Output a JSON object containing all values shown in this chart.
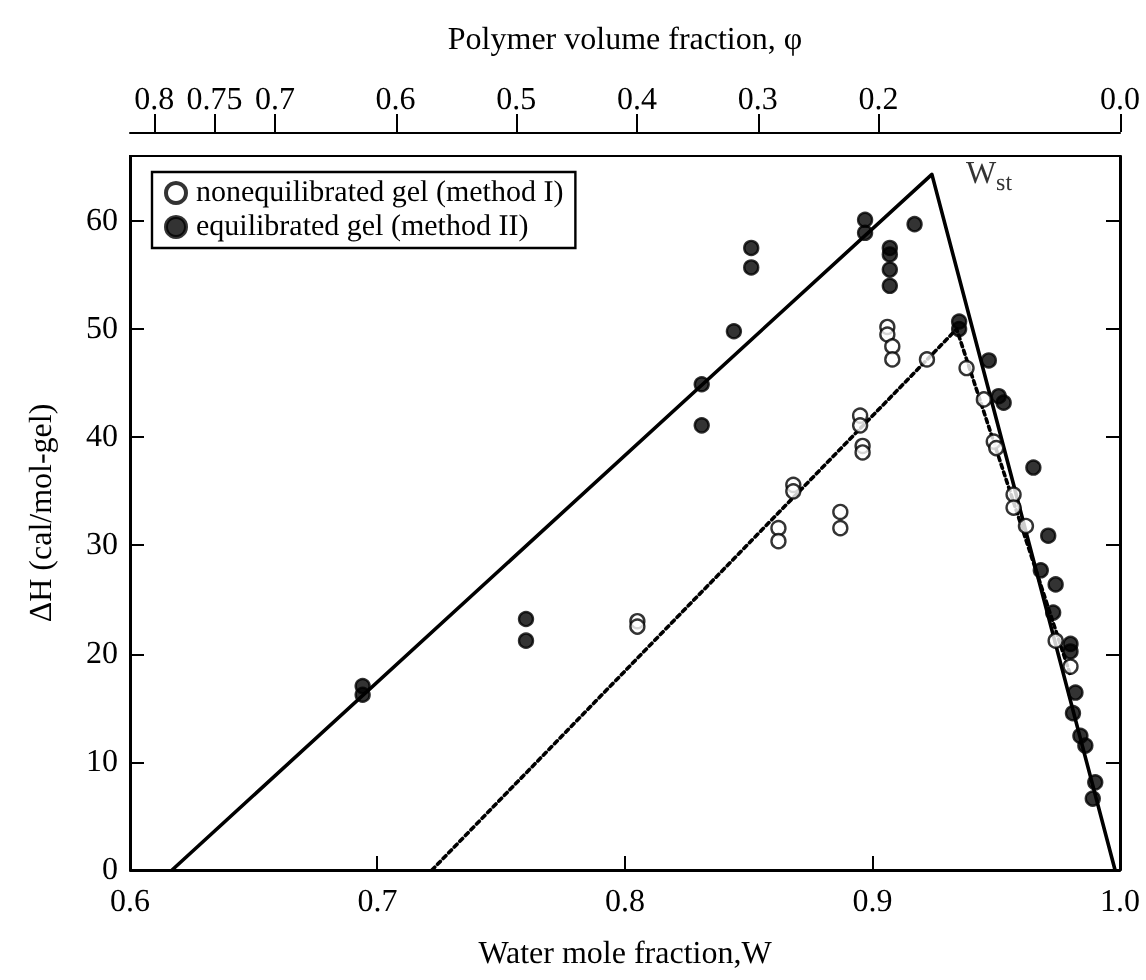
{
  "chart_data": {
    "type": "scatter",
    "xlabel": "Water mole fraction,W",
    "ylabel": "ΔH (cal/mol-gel)",
    "x2label": "Polymer volume fraction, φ",
    "xlim": [
      0.6,
      1.0
    ],
    "xticks": [
      0.6,
      0.7,
      0.8,
      0.9,
      {
        "value": 1.0,
        "label": "1.0"
      }
    ],
    "ylim": [
      0,
      66
    ],
    "yticks": [
      0,
      10,
      20,
      30,
      40,
      50,
      60
    ],
    "x2lim": [
      0.82,
      0.0
    ],
    "x2ticks": [
      0.8,
      0.75,
      0.7,
      0.6,
      0.5,
      0.4,
      0.3,
      0.2,
      {
        "value": 0,
        "label": "0.0"
      }
    ],
    "legend": "top left",
    "marker": "circle",
    "grid": false,
    "annotations": [
      {
        "text": "W$_{st}$",
        "x": 0.924,
        "y": 64.3
      }
    ],
    "series": [
      {
        "name": "nonequilibrated gel (method I)",
        "color": "#000000",
        "x": [
          0.805,
          0.805,
          0.862,
          0.862,
          0.868,
          0.868,
          0.887,
          0.887,
          0.895,
          0.895,
          0.896,
          0.896,
          0.906,
          0.906,
          0.908,
          0.908,
          0.922,
          0.938,
          0.945,
          0.949,
          0.95,
          0.957,
          0.957,
          0.962,
          0.974,
          0.98
        ],
        "values": [
          23,
          22.5,
          31.6,
          30.4,
          35.6,
          35,
          33.1,
          31.6,
          42,
          41.1,
          39.2,
          38.6,
          50.2,
          49.5,
          48.4,
          47.2,
          47.2,
          46.4,
          43.5,
          39.6,
          39,
          34.7,
          33.5,
          31.8,
          21.2,
          18.8
        ]
      },
      {
        "name": "equilibrated gel (method II)",
        "color": "#000000",
        "x": [
          0.694,
          0.694,
          0.76,
          0.76,
          0.831,
          0.831,
          0.844,
          0.851,
          0.851,
          0.897,
          0.897,
          0.907,
          0.907,
          0.907,
          0.907,
          0.917,
          0.935,
          0.935,
          0.947,
          0.951,
          0.953,
          0.965,
          0.971,
          0.968,
          0.974,
          0.973,
          0.98,
          0.98,
          0.982,
          0.981,
          0.984,
          0.986,
          0.99,
          0.989
        ],
        "values": [
          17,
          16.2,
          23.2,
          21.2,
          44.9,
          41.1,
          49.8,
          57.5,
          55.7,
          60.1,
          58.9,
          57.5,
          56.9,
          55.5,
          54,
          59.7,
          50.7,
          50,
          47.1,
          43.8,
          43.2,
          37.2,
          30.9,
          27.7,
          26.4,
          23.8,
          20.9,
          20.2,
          16.4,
          14.5,
          12.4,
          11.5,
          8.1,
          6.6
        ]
      },
      {
        "type": "line",
        "color": "#000000",
        "line_style": "solid",
        "marker": "none",
        "x": [
          0.617,
          0.924,
          0.998
        ],
        "values": [
          0,
          64.3,
          0
        ]
      },
      {
        "type": "line",
        "color": "#000000",
        "line_style": "dotted",
        "marker": "none",
        "x": [
          0.722,
          0.934,
          0.98
        ],
        "values": [
          0,
          50,
          18
        ]
      }
    ]
  }
}
